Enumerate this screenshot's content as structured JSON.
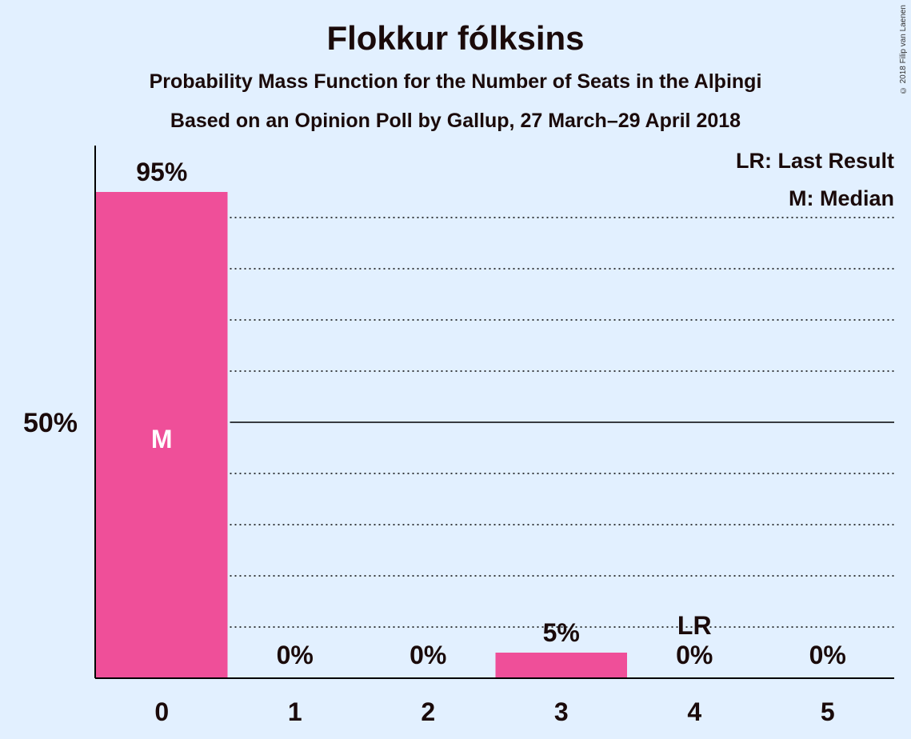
{
  "chart_data": {
    "type": "bar",
    "title": "Flokkur fólksins",
    "subtitle": "Probability Mass Function for the Number of Seats in the Alþingi",
    "subtitle2": "Based on an Opinion Poll by Gallup, 27 March–29 April 2018",
    "categories": [
      "0",
      "1",
      "2",
      "3",
      "4",
      "5"
    ],
    "values": [
      95,
      0,
      0,
      5,
      0,
      0
    ],
    "value_labels": [
      "95%",
      "0%",
      "0%",
      "5%",
      "0%",
      "0%"
    ],
    "ylim": [
      0,
      100
    ],
    "y_tick_label": "50%",
    "y_tick_value": 50,
    "median_category": "0",
    "median_marker": "M",
    "last_result_category": "4",
    "last_result_marker": "LR",
    "legend": [
      "LR: Last Result",
      "M: Median"
    ],
    "legend_position": "top-right",
    "grid": true,
    "bar_color": "#ef4f99",
    "copyright": "© 2018 Filip van Laenen"
  }
}
